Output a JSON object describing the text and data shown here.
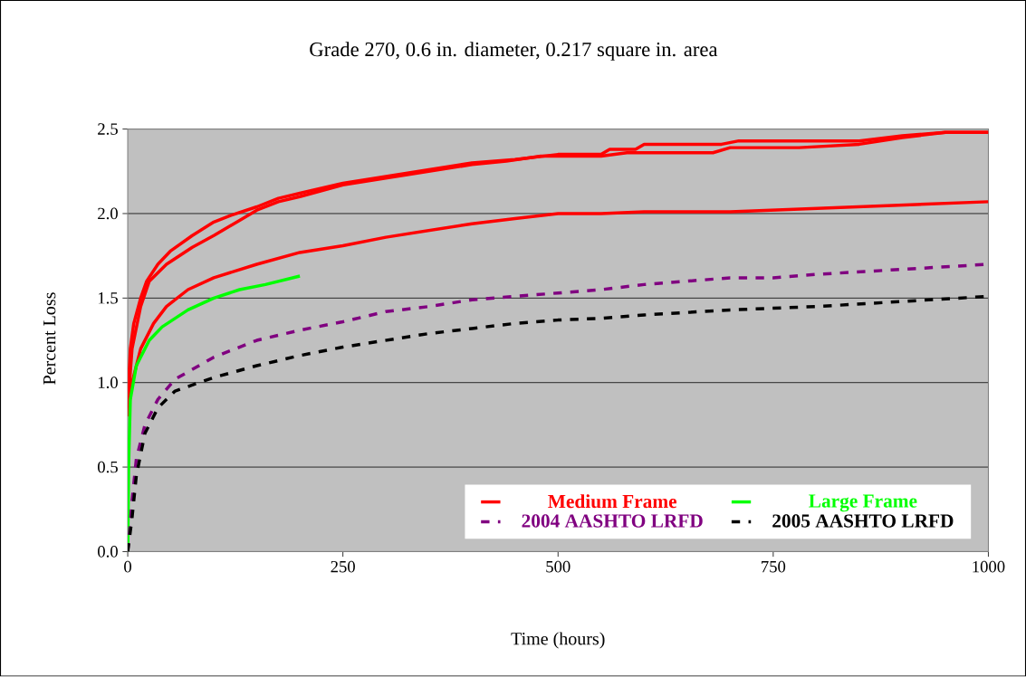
{
  "chart_data": {
    "type": "line",
    "title": "Grade 270, 0.6 in. diameter, 0.217 square in. area",
    "xlabel": "Time (hours)",
    "ylabel": "Percent Loss",
    "xlim": [
      0,
      1000
    ],
    "xticks": [
      0,
      250,
      500,
      750,
      1000
    ],
    "ylim": [
      0,
      2.5
    ],
    "yticks": [
      {
        "value": 0,
        "label": "0.0"
      },
      {
        "value": 0.5,
        "label": "0.5"
      },
      {
        "value": 1,
        "label": "1.0"
      },
      {
        "value": 1.5,
        "label": "1.5"
      },
      {
        "value": 2,
        "label": "2.0"
      },
      {
        "value": 2.5,
        "label": "2.5"
      }
    ],
    "grid": "y",
    "legend": "bottom right",
    "marker": "none",
    "series": [
      {
        "name": "Medium Frame",
        "color": "#ff0000",
        "line_style": "solid",
        "x": [
          0,
          3,
          7,
          15,
          22,
          35,
          50,
          75,
          100,
          120,
          150,
          175,
          200,
          250,
          300,
          350,
          400,
          450,
          500,
          550,
          560,
          590,
          600,
          690,
          710,
          800,
          850,
          900,
          950,
          1000
        ],
        "values": [
          0.9,
          1.2,
          1.35,
          1.5,
          1.6,
          1.7,
          1.78,
          1.87,
          1.95,
          1.99,
          2.04,
          2.09,
          2.12,
          2.18,
          2.22,
          2.26,
          2.3,
          2.32,
          2.35,
          2.35,
          2.38,
          2.38,
          2.41,
          2.41,
          2.43,
          2.43,
          2.43,
          2.46,
          2.48,
          2.48
        ]
      },
      {
        "color": "#ff0000",
        "line_style": "solid",
        "x": [
          0,
          5,
          15,
          25,
          45,
          75,
          100,
          130,
          150,
          175,
          200,
          250,
          300,
          350,
          400,
          440,
          480,
          520,
          550,
          580,
          680,
          700,
          780,
          850,
          900,
          950,
          1000
        ],
        "values": [
          0.85,
          1.2,
          1.45,
          1.6,
          1.7,
          1.8,
          1.87,
          1.96,
          2.02,
          2.07,
          2.1,
          2.17,
          2.21,
          2.25,
          2.29,
          2.31,
          2.34,
          2.34,
          2.34,
          2.36,
          2.36,
          2.39,
          2.39,
          2.41,
          2.45,
          2.48,
          2.48
        ]
      },
      {
        "color": "#ff0000",
        "line_style": "solid",
        "x": [
          0,
          5,
          15,
          30,
          45,
          70,
          100,
          150,
          200,
          250,
          300,
          350,
          400,
          450,
          500,
          550,
          600,
          650,
          700,
          750,
          800,
          900,
          1000
        ],
        "values": [
          0.8,
          1.0,
          1.2,
          1.35,
          1.45,
          1.55,
          1.62,
          1.7,
          1.77,
          1.81,
          1.86,
          1.9,
          1.94,
          1.97,
          2.0,
          2.0,
          2.01,
          2.01,
          2.01,
          2.02,
          2.03,
          2.05,
          2.07
        ]
      },
      {
        "name": "Large Frame",
        "color": "#00ff00",
        "line_style": "solid",
        "x": [
          0,
          1,
          3,
          10,
          25,
          40,
          70,
          100,
          130,
          160,
          200
        ],
        "values": [
          0,
          0.5,
          0.9,
          1.1,
          1.25,
          1.33,
          1.43,
          1.5,
          1.55,
          1.58,
          1.63
        ]
      },
      {
        "name": "2004 AASHTO LRFD",
        "color": "#800080",
        "line_style": "dashed",
        "x": [
          0,
          5,
          10,
          20,
          35,
          55,
          100,
          150,
          200,
          250,
          300,
          350,
          400,
          450,
          500,
          550,
          600,
          650,
          700,
          750,
          800,
          900,
          1000
        ],
        "values": [
          0,
          0.3,
          0.55,
          0.75,
          0.9,
          1.02,
          1.15,
          1.25,
          1.31,
          1.36,
          1.42,
          1.45,
          1.49,
          1.51,
          1.53,
          1.55,
          1.58,
          1.6,
          1.62,
          1.62,
          1.64,
          1.67,
          1.7
        ]
      },
      {
        "name": "2005 AASHTO LRFD",
        "color": "#000000",
        "line_style": "dashed",
        "x": [
          0,
          5,
          10,
          20,
          35,
          55,
          100,
          150,
          200,
          250,
          300,
          350,
          400,
          450,
          500,
          550,
          600,
          700,
          800,
          900,
          1000
        ],
        "values": [
          0,
          0.2,
          0.45,
          0.7,
          0.85,
          0.95,
          1.03,
          1.1,
          1.16,
          1.21,
          1.25,
          1.29,
          1.32,
          1.35,
          1.37,
          1.38,
          1.4,
          1.43,
          1.45,
          1.48,
          1.51
        ]
      }
    ]
  }
}
